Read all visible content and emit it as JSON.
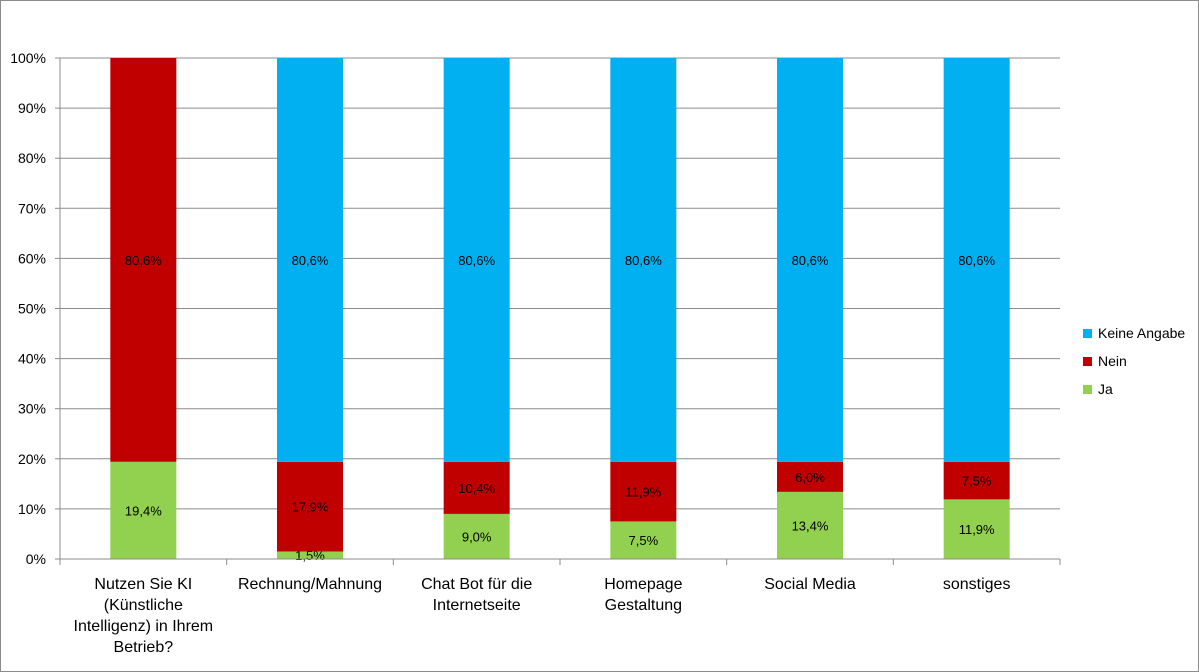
{
  "chart_data": {
    "type": "bar",
    "stacked": true,
    "categories": [
      "Nutzen Sie KI (Künstliche Intelligenz) in Ihrem Betrieb?",
      "Rechnung/Mahnung",
      "Chat Bot für die Internetseite",
      "Homepage Gestaltung",
      "Social Media",
      "sonstiges"
    ],
    "category_lines": [
      [
        "Nutzen Sie KI",
        "(Künstliche",
        "Intelligenz) in Ihrem",
        "Betrieb?"
      ],
      [
        "Rechnung/Mahnung"
      ],
      [
        "Chat Bot für die",
        "Internetseite"
      ],
      [
        "Homepage",
        "Gestaltung"
      ],
      [
        "Social Media"
      ],
      [
        "sonstiges"
      ]
    ],
    "series": [
      {
        "name": "Ja",
        "color": "#92d050",
        "values": [
          19.4,
          1.5,
          9.0,
          7.5,
          13.4,
          11.9
        ],
        "labels": [
          "19,4%",
          "1,5%",
          "9,0%",
          "7,5%",
          "13,4%",
          "11,9%"
        ]
      },
      {
        "name": "Nein",
        "color": "#c00000",
        "values": [
          80.6,
          17.9,
          10.4,
          11.9,
          6.0,
          7.5
        ],
        "labels": [
          "80,6%",
          "17,9%",
          "10,4%",
          "11,9%",
          "6,0%",
          "7,5%"
        ]
      },
      {
        "name": "Keine Angabe",
        "color": "#00b0f0",
        "values": [
          0,
          80.6,
          80.6,
          80.6,
          80.6,
          80.6
        ],
        "labels": [
          "",
          "80,6%",
          "80,6%",
          "80,6%",
          "80,6%",
          "80,6%"
        ]
      }
    ],
    "yticks": [
      "0%",
      "10%",
      "20%",
      "30%",
      "40%",
      "50%",
      "60%",
      "70%",
      "80%",
      "90%",
      "100%"
    ],
    "ylim": [
      0,
      100
    ],
    "grid": true,
    "legend_position": "right",
    "legend": [
      {
        "name": "Keine Angabe",
        "color": "#00b0f0"
      },
      {
        "name": "Nein",
        "color": "#c00000"
      },
      {
        "name": "Ja",
        "color": "#92d050"
      }
    ]
  }
}
